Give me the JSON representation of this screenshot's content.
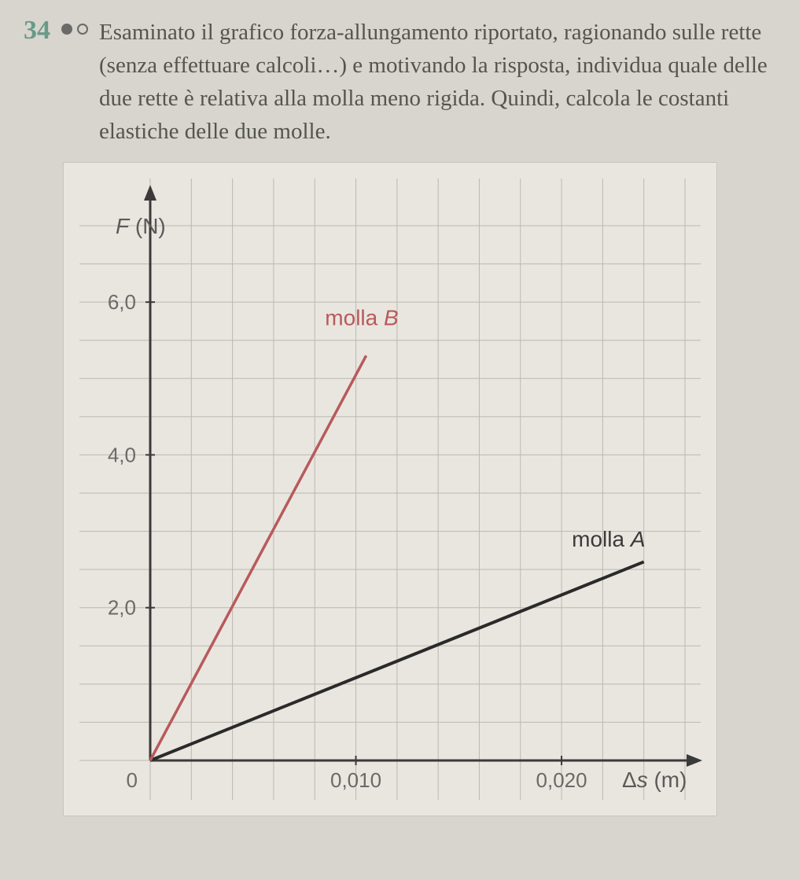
{
  "problem": {
    "number": "34",
    "difficulty_filled": 1,
    "difficulty_total": 2,
    "text": "Esaminato il grafico forza-allungamento riportato, ragionando sulle rette (senza effettuare calcoli…) e motivando la risposta, individua quale delle due rette è relativa alla molla meno rigida. Quindi, calcola le costanti elastiche delle due molle."
  },
  "chart": {
    "type": "line",
    "background_color": "#e9e6e0",
    "grid_color": "#bcb8b0",
    "axis_color": "#3a3a3a",
    "y_axis": {
      "label": "F (N)",
      "label_fontsize": 28,
      "ticks": [
        {
          "value": 2.0,
          "label": "2,0"
        },
        {
          "value": 4.0,
          "label": "4,0"
        },
        {
          "value": 6.0,
          "label": "6,0"
        }
      ],
      "tick_fontsize": 26,
      "min": 0,
      "max": 7.0,
      "grid_step": 0.5
    },
    "x_axis": {
      "label": "Δs (m)",
      "label_fontsize": 28,
      "ticks": [
        {
          "value": 0.01,
          "label": "0,010"
        },
        {
          "value": 0.02,
          "label": "0,020"
        }
      ],
      "tick_fontsize": 26,
      "origin_label": "0",
      "min": 0,
      "max": 0.026,
      "grid_step": 0.002
    },
    "series": [
      {
        "name": "molla A",
        "label": "molla A",
        "color": "#2a2a2a",
        "label_color": "#3a3a3a",
        "label_fontsize": 28,
        "label_style": "italic-part",
        "points": [
          {
            "x": 0,
            "y": 0
          },
          {
            "x": 0.024,
            "y": 2.6
          }
        ],
        "label_pos": {
          "x": 0.0205,
          "y": 2.8
        }
      },
      {
        "name": "molla B",
        "label": "molla B",
        "color": "#b85a5a",
        "label_color": "#b85a5a",
        "label_fontsize": 28,
        "label_style": "italic-part",
        "points": [
          {
            "x": 0,
            "y": 0
          },
          {
            "x": 0.0105,
            "y": 5.3
          }
        ],
        "label_pos": {
          "x": 0.0085,
          "y": 5.7
        }
      }
    ]
  }
}
